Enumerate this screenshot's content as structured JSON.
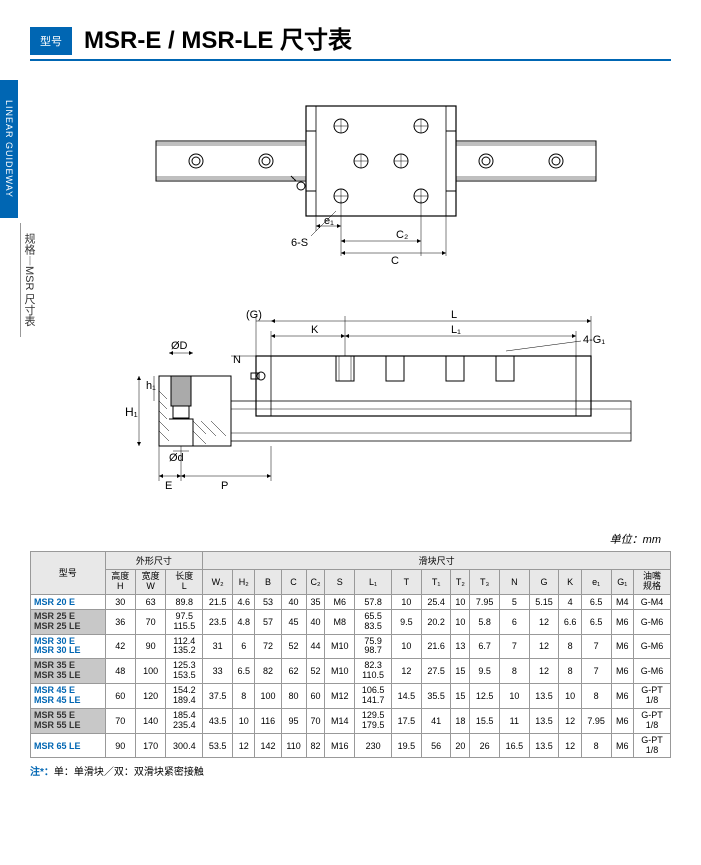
{
  "header": {
    "typeLabel": "型号",
    "title": "MSR-E / MSR-LE 尺寸表"
  },
  "sidebar": {
    "blue": "LINEAR GUIDEWAY",
    "gray": "规格︱MSR 尺寸表"
  },
  "diagram1": {
    "labels": {
      "e1": "e₁",
      "sixS": "6-S",
      "C2": "C₂",
      "C": "C"
    }
  },
  "diagram2": {
    "labels": {
      "G": "(G)",
      "L": "L",
      "K": "K",
      "L1": "L₁",
      "fourG1": "4-G₁",
      "OD": "ØD",
      "N": "N",
      "h1": "h₁",
      "H1": "H₁",
      "Od": "Ød",
      "E": "E",
      "P": "P"
    }
  },
  "unitLabel": "单位：mm",
  "table": {
    "groupHeaders": {
      "model": "型号",
      "outer": "外形尺寸",
      "block": "滑块尺寸"
    },
    "colHeaders": [
      "高度\nH",
      "宽度\nW",
      "长度\nL",
      "W₂",
      "H₂",
      "B",
      "C",
      "C₂",
      "S",
      "L₁",
      "T",
      "T₁",
      "T₂",
      "T₃",
      "N",
      "G",
      "K",
      "e₁",
      "G₁",
      "油嘴\n规格"
    ],
    "rows": [
      {
        "style": "blue-row",
        "model": "MSR 20 E",
        "cells": [
          "30",
          "63",
          "89.8",
          "21.5",
          "4.6",
          "53",
          "40",
          "35",
          "M6",
          "57.8",
          "10",
          "25.4",
          "10",
          "7.95",
          "5",
          "5.15",
          "4",
          "6.5",
          "M4",
          "G-M4"
        ]
      },
      {
        "style": "gray-row",
        "model": "MSR 25 E\nMSR 25 LE",
        "cells": [
          "36",
          "70",
          "97.5\n115.5",
          "23.5",
          "4.8",
          "57",
          "45",
          "40",
          "M8",
          "65.5\n83.5",
          "9.5",
          "20.2",
          "10",
          "5.8",
          "6",
          "12",
          "6.6",
          "6.5",
          "M6",
          "G-M6"
        ]
      },
      {
        "style": "blue-row",
        "model": "MSR 30 E\nMSR 30 LE",
        "cells": [
          "42",
          "90",
          "112.4\n135.2",
          "31",
          "6",
          "72",
          "52",
          "44",
          "M10",
          "75.9\n98.7",
          "10",
          "21.6",
          "13",
          "6.7",
          "7",
          "12",
          "8",
          "7",
          "M6",
          "G-M6"
        ]
      },
      {
        "style": "gray-row",
        "model": "MSR 35 E\nMSR 35 LE",
        "cells": [
          "48",
          "100",
          "125.3\n153.5",
          "33",
          "6.5",
          "82",
          "62",
          "52",
          "M10",
          "82.3\n110.5",
          "12",
          "27.5",
          "15",
          "9.5",
          "8",
          "12",
          "8",
          "7",
          "M6",
          "G-M6"
        ]
      },
      {
        "style": "blue-row",
        "model": "MSR 45 E\nMSR 45 LE",
        "cells": [
          "60",
          "120",
          "154.2\n189.4",
          "37.5",
          "8",
          "100",
          "80",
          "60",
          "M12",
          "106.5\n141.7",
          "14.5",
          "35.5",
          "15",
          "12.5",
          "10",
          "13.5",
          "10",
          "8",
          "M6",
          "G-PT\n1/8"
        ]
      },
      {
        "style": "gray-row",
        "model": "MSR 55 E\nMSR 55 LE",
        "cells": [
          "70",
          "140",
          "185.4\n235.4",
          "43.5",
          "10",
          "116",
          "95",
          "70",
          "M14",
          "129.5\n179.5",
          "17.5",
          "41",
          "18",
          "15.5",
          "11",
          "13.5",
          "12",
          "7.95",
          "M6",
          "G-PT\n1/8"
        ]
      },
      {
        "style": "blue-row",
        "model": "MSR 65 LE",
        "cells": [
          "90",
          "170",
          "300.4",
          "53.5",
          "12",
          "142",
          "110",
          "82",
          "M16",
          "230",
          "19.5",
          "56",
          "20",
          "26",
          "16.5",
          "13.5",
          "12",
          "8",
          "M6",
          "G-PT\n1/8"
        ]
      }
    ]
  },
  "note": {
    "label": "注*：",
    "text": "单：单滑块／双：双滑块紧密接触"
  }
}
